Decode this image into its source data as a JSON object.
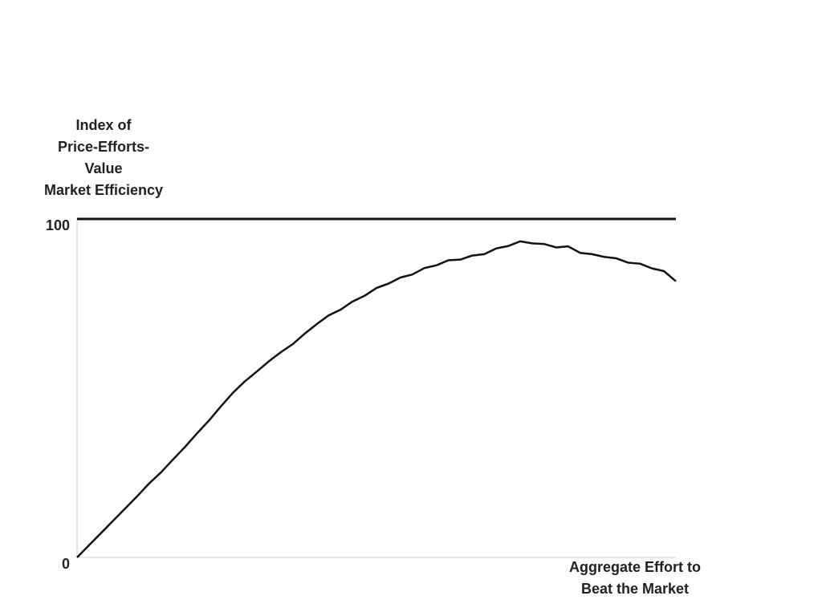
{
  "chart_data": {
    "type": "line",
    "y_label": [
      "Index of",
      "Price-Efforts-",
      "Value",
      "Market Efficiency"
    ],
    "x_label": [
      "Aggregate Effort to",
      "Beat the Market"
    ],
    "x": [
      0,
      2,
      4,
      6,
      8,
      10,
      12,
      14,
      16,
      18,
      20,
      22,
      24,
      26,
      28,
      30,
      32,
      34,
      36,
      38,
      40,
      42,
      44,
      46,
      48,
      50,
      52,
      54,
      56,
      58,
      60,
      62,
      64,
      66,
      68,
      70,
      72,
      74,
      76,
      78,
      80,
      82,
      84,
      86,
      88,
      90,
      92,
      94,
      96,
      98,
      100
    ],
    "values": [
      0,
      3.6,
      7.2,
      10.8,
      14.4,
      18.0,
      21.8,
      25.1,
      28.9,
      32.6,
      36.6,
      40.4,
      44.6,
      48.6,
      52.0,
      54.9,
      57.9,
      60.6,
      63.0,
      66.1,
      68.9,
      71.5,
      73.2,
      75.6,
      77.3,
      79.6,
      80.9,
      82.7,
      83.6,
      85.5,
      86.3,
      87.8,
      88.0,
      89.2,
      89.6,
      91.3,
      92.0,
      93.4,
      92.8,
      92.6,
      91.6,
      91.9,
      90.0,
      89.6,
      88.8,
      88.4,
      87.1,
      86.8,
      85.4,
      84.6,
      81.6
    ],
    "color": "#111111",
    "reference_lines": [
      100
    ],
    "xlim": [
      0,
      100
    ],
    "ylim": [
      0,
      100
    ],
    "yticks": [
      0,
      100
    ]
  }
}
